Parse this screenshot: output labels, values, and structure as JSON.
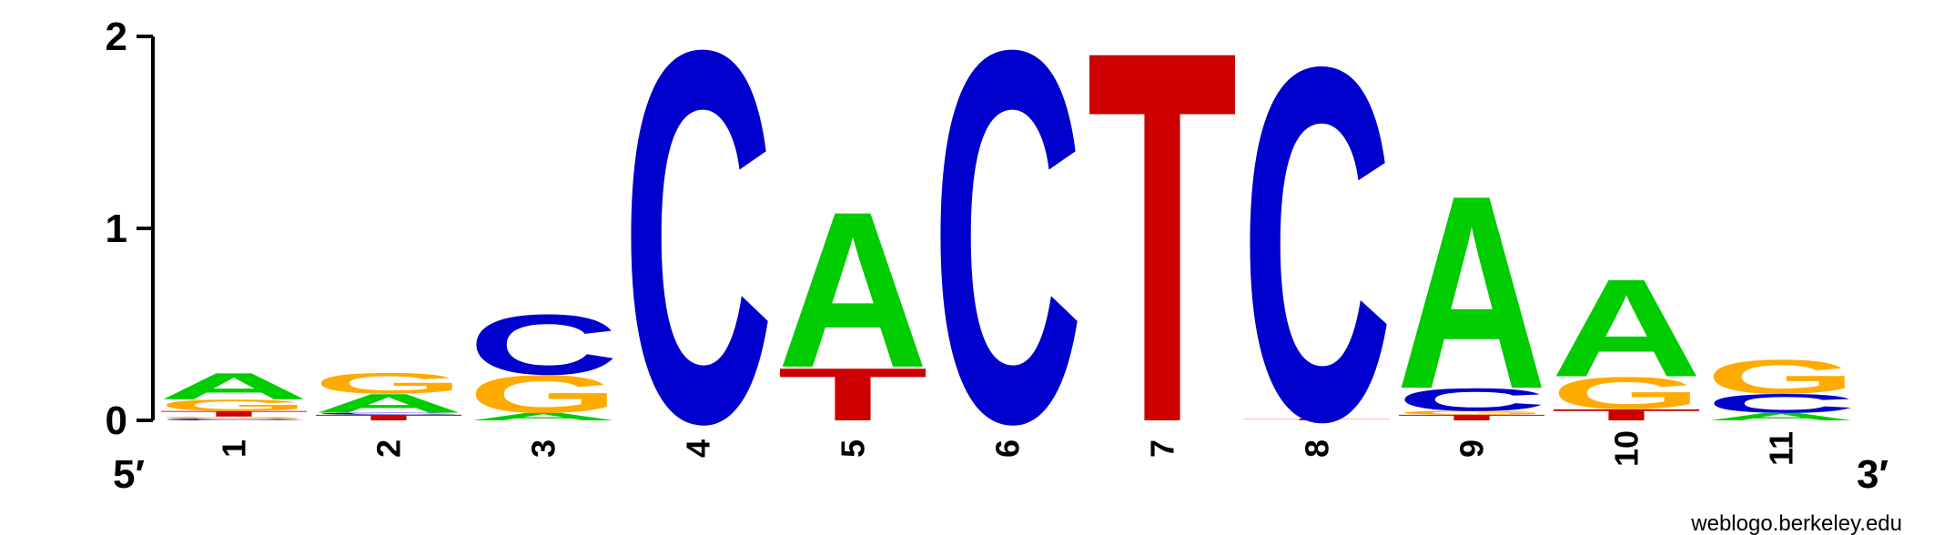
{
  "chart_data": {
    "type": "sequence_logo",
    "ylim": [
      0,
      2
    ],
    "y_ticks": [
      "0",
      "1",
      "2"
    ],
    "start_label": "5′",
    "end_label": "3′",
    "credit": "weblogo.berkeley.edu",
    "colors": {
      "A": "#00cc00",
      "C": "#0000cc",
      "G": "#ffaa00",
      "T": "#cc0000"
    },
    "positions": [
      {
        "label": "1",
        "stack": [
          {
            "letter": "C",
            "bits": 0.01
          },
          {
            "letter": "G",
            "bits": 0.01
          },
          {
            "letter": "T",
            "bits": 0.03
          },
          {
            "letter": "G",
            "bits": 0.06
          },
          {
            "letter": "A",
            "bits": 0.14
          }
        ]
      },
      {
        "label": "2",
        "stack": [
          {
            "letter": "T",
            "bits": 0.03
          },
          {
            "letter": "C",
            "bits": 0.01
          },
          {
            "letter": "A",
            "bits": 0.1
          },
          {
            "letter": "G",
            "bits": 0.11
          }
        ]
      },
      {
        "label": "3",
        "stack": [
          {
            "letter": "A",
            "bits": 0.04
          },
          {
            "letter": "G",
            "bits": 0.2
          },
          {
            "letter": "C",
            "bits": 0.32
          }
        ]
      },
      {
        "label": "4",
        "stack": [
          {
            "letter": "C",
            "bits": 1.98
          }
        ]
      },
      {
        "label": "5",
        "stack": [
          {
            "letter": "T",
            "bits": 0.28
          },
          {
            "letter": "A",
            "bits": 0.83
          }
        ]
      },
      {
        "label": "6",
        "stack": [
          {
            "letter": "C",
            "bits": 1.98
          }
        ]
      },
      {
        "label": "7",
        "stack": [
          {
            "letter": "T",
            "bits": 1.98
          }
        ]
      },
      {
        "label": "8",
        "stack": [
          {
            "letter": "T",
            "bits": 0.01
          },
          {
            "letter": "C",
            "bits": 1.88
          }
        ]
      },
      {
        "label": "9",
        "stack": [
          {
            "letter": "T",
            "bits": 0.03
          },
          {
            "letter": "G",
            "bits": 0.02
          },
          {
            "letter": "C",
            "bits": 0.12
          },
          {
            "letter": "A",
            "bits": 1.03
          }
        ]
      },
      {
        "label": "10",
        "stack": [
          {
            "letter": "T",
            "bits": 0.06
          },
          {
            "letter": "G",
            "bits": 0.17
          },
          {
            "letter": "A",
            "bits": 0.52
          }
        ]
      },
      {
        "label": "11",
        "stack": [
          {
            "letter": "A",
            "bits": 0.04
          },
          {
            "letter": "C",
            "bits": 0.1
          },
          {
            "letter": "G",
            "bits": 0.18
          }
        ]
      }
    ]
  }
}
